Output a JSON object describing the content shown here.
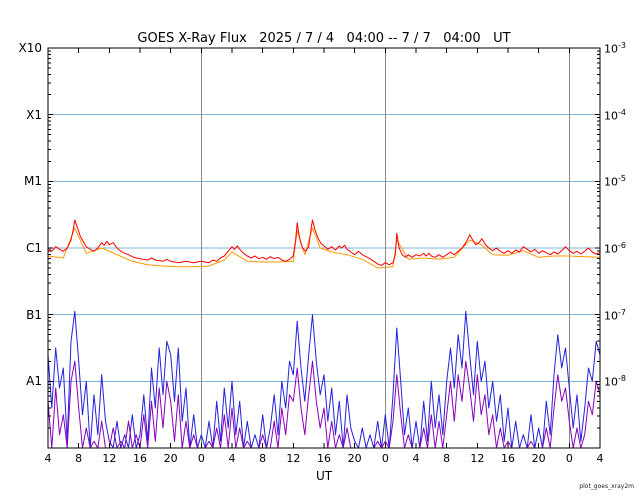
{
  "title": "GOES X-Ray Flux   2025 / 7 / 4   04:00 -- 7 / 7   04:00   UT",
  "watermark": "plot_goes_xray2m",
  "colors": {
    "grid_blue": "#7fb2d9",
    "day_line_gray": "#8a8a8a",
    "frame_black": "#000000",
    "red_trace": "#ff0000",
    "orange_trace": "#ff9900",
    "blue_trace": "#2222dd",
    "purple_trace": "#8800bb"
  },
  "axes": {
    "x": {
      "label": "UT",
      "start_hour": 4,
      "end_hour": 76,
      "tick_step_hours": 4,
      "tick_labels": [
        "4",
        "8",
        "12",
        "16",
        "20",
        "0",
        "4",
        "8",
        "12",
        "16",
        "20",
        "0",
        "4",
        "8",
        "12",
        "16",
        "20",
        "0",
        "4"
      ],
      "day_boundaries_hours": [
        24,
        48,
        72
      ]
    },
    "y_left": {
      "labels": [
        "X10",
        "X1",
        "M1",
        "C1",
        "B1",
        "A1"
      ],
      "label_exponents": [
        -3,
        -4,
        -5,
        -6,
        -7,
        -8
      ]
    },
    "y_right": {
      "base": "10",
      "exponents": [
        "-3",
        "-4",
        "-5",
        "-6",
        "-7",
        "-8"
      ]
    },
    "ylim_exponents": [
      -9,
      -3
    ],
    "grid_decades": [
      -4,
      -5,
      -6,
      -7,
      -8
    ]
  },
  "chart_data": {
    "type": "line",
    "title": "GOES X-Ray Flux   2025 / 7 / 4   04:00 -- 7 / 7   04:00   UT",
    "xlabel": "UT",
    "x_hours_range": [
      4,
      76
    ],
    "y_log10_range": [
      -9,
      -3
    ],
    "grid": "horizontal decade lines (light blue), vertical day-boundary lines (gray)",
    "legend": "none shown",
    "value_units": "log10 of X-ray flux (watts per square meter)",
    "series": [
      {
        "name": "blue",
        "color": "#2222dd",
        "sampling": "uniform",
        "start_hour": 4,
        "step_hours": 0.5,
        "log_values": [
          -7.6,
          -8.4,
          -7.5,
          -8.1,
          -7.8,
          -8.9,
          -7.4,
          -6.95,
          -7.7,
          -8.5,
          -8.0,
          -9.0,
          -8.2,
          -8.8,
          -7.9,
          -8.6,
          -8.9,
          -9.3,
          -8.6,
          -9.1,
          -8.8,
          -9.4,
          -8.5,
          -9.0,
          -8.8,
          -8.2,
          -8.9,
          -7.8,
          -8.4,
          -7.5,
          -8.2,
          -7.4,
          -7.6,
          -8.3,
          -7.5,
          -8.6,
          -8.1,
          -9.0,
          -8.5,
          -9.2,
          -8.8,
          -9.3,
          -8.6,
          -9.1,
          -8.3,
          -8.9,
          -8.1,
          -8.7,
          -8.0,
          -8.8,
          -8.3,
          -9.1,
          -8.6,
          -9.3,
          -8.8,
          -9.0,
          -8.5,
          -9.2,
          -8.7,
          -8.2,
          -8.8,
          -8.0,
          -8.4,
          -7.7,
          -7.9,
          -7.1,
          -7.8,
          -8.3,
          -7.6,
          -7.0,
          -7.7,
          -8.2,
          -7.9,
          -8.6,
          -8.1,
          -8.8,
          -8.3,
          -9.0,
          -8.2,
          -8.7,
          -8.9,
          -9.3,
          -8.7,
          -9.2,
          -8.8,
          -9.4,
          -8.6,
          -9.1,
          -8.5,
          -9.0,
          -8.2,
          -7.2,
          -8.0,
          -8.8,
          -8.4,
          -9.0,
          -8.6,
          -9.2,
          -8.3,
          -8.9,
          -8.0,
          -8.7,
          -8.2,
          -8.8,
          -8.0,
          -7.5,
          -8.1,
          -7.3,
          -7.8,
          -6.95,
          -7.6,
          -8.2,
          -7.4,
          -8.0,
          -7.7,
          -8.4,
          -8.0,
          -8.6,
          -8.2,
          -8.9,
          -8.4,
          -9.0,
          -8.6,
          -9.2,
          -8.8,
          -9.3,
          -8.5,
          -9.1,
          -8.7,
          -9.2,
          -8.3,
          -8.8,
          -7.9,
          -7.3,
          -7.8,
          -7.5,
          -8.1,
          -8.7,
          -8.2,
          -8.9,
          -8.4,
          -7.8,
          -8.0,
          -7.4,
          -7.6
        ]
      },
      {
        "name": "purple",
        "color": "#8800bb",
        "sampling": "uniform",
        "start_hour": 4,
        "step_hours": 0.5,
        "log_values": [
          -8.3,
          -9.0,
          -8.1,
          -8.8,
          -8.5,
          -9.2,
          -8.0,
          -7.7,
          -8.4,
          -9.1,
          -8.7,
          -9.4,
          -8.9,
          -9.2,
          -8.6,
          -9.0,
          -9.2,
          -8.7,
          -9.4,
          -8.9,
          -9.1,
          -8.6,
          -9.3,
          -8.8,
          -9.0,
          -8.5,
          -9.2,
          -8.3,
          -8.9,
          -8.1,
          -8.7,
          -8.0,
          -8.3,
          -8.9,
          -8.2,
          -9.0,
          -8.6,
          -9.3,
          -8.8,
          -9.4,
          -9.1,
          -9.5,
          -8.9,
          -9.3,
          -8.7,
          -9.2,
          -8.5,
          -9.0,
          -8.4,
          -9.1,
          -8.7,
          -9.3,
          -8.9,
          -9.5,
          -9.0,
          -9.3,
          -8.8,
          -9.4,
          -9.0,
          -8.6,
          -9.1,
          -8.4,
          -8.8,
          -8.2,
          -8.3,
          -7.8,
          -8.4,
          -8.8,
          -8.2,
          -7.7,
          -8.3,
          -8.7,
          -8.4,
          -9.0,
          -8.6,
          -9.2,
          -8.8,
          -9.4,
          -8.7,
          -9.1,
          -9.2,
          -9.5,
          -9.0,
          -9.4,
          -9.1,
          -9.5,
          -8.9,
          -9.3,
          -8.9,
          -9.3,
          -8.6,
          -7.9,
          -8.5,
          -9.1,
          -8.8,
          -9.3,
          -9.0,
          -9.4,
          -8.7,
          -9.2,
          -8.5,
          -9.0,
          -8.6,
          -9.1,
          -8.5,
          -8.0,
          -8.6,
          -7.9,
          -8.3,
          -7.7,
          -8.1,
          -8.6,
          -7.9,
          -8.5,
          -8.2,
          -8.8,
          -8.5,
          -9.0,
          -8.7,
          -9.2,
          -8.9,
          -9.3,
          -9.0,
          -9.4,
          -9.1,
          -9.5,
          -8.9,
          -9.3,
          -9.0,
          -9.4,
          -8.7,
          -9.1,
          -8.4,
          -7.9,
          -8.3,
          -8.1,
          -8.6,
          -9.1,
          -8.7,
          -9.2,
          -8.8,
          -8.3,
          -8.5,
          -8.0,
          -8.2
        ]
      },
      {
        "name": "orange",
        "color": "#ff9900",
        "sampling": "pairs",
        "points": [
          [
            4,
            -6.12
          ],
          [
            6,
            -6.15
          ],
          [
            7.5,
            -5.7
          ],
          [
            9,
            -6.08
          ],
          [
            11,
            -6.0
          ],
          [
            13,
            -6.1
          ],
          [
            15,
            -6.2
          ],
          [
            17,
            -6.25
          ],
          [
            19,
            -6.27
          ],
          [
            21,
            -6.28
          ],
          [
            23,
            -6.28
          ],
          [
            25,
            -6.27
          ],
          [
            27,
            -6.18
          ],
          [
            28,
            -6.06
          ],
          [
            30,
            -6.2
          ],
          [
            32,
            -6.21
          ],
          [
            34,
            -6.21
          ],
          [
            36,
            -6.2
          ],
          [
            36.5,
            -5.74
          ],
          [
            37.5,
            -6.1
          ],
          [
            38.5,
            -5.7
          ],
          [
            39.5,
            -6.0
          ],
          [
            41,
            -6.06
          ],
          [
            43,
            -6.1
          ],
          [
            45,
            -6.17
          ],
          [
            47,
            -6.3
          ],
          [
            49,
            -6.28
          ],
          [
            49.5,
            -5.88
          ],
          [
            51,
            -6.17
          ],
          [
            53,
            -6.15
          ],
          [
            55,
            -6.17
          ],
          [
            57,
            -6.14
          ],
          [
            59,
            -5.88
          ],
          [
            60.5,
            -5.95
          ],
          [
            62,
            -6.1
          ],
          [
            64,
            -6.11
          ],
          [
            66,
            -6.04
          ],
          [
            68,
            -6.14
          ],
          [
            70,
            -6.12
          ],
          [
            72,
            -6.12
          ],
          [
            74,
            -6.13
          ],
          [
            76,
            -6.14
          ]
        ]
      },
      {
        "name": "red",
        "color": "#ff0000",
        "sampling": "pairs",
        "points": [
          [
            4,
            -6.0
          ],
          [
            4.5,
            -6.05
          ],
          [
            5,
            -5.98
          ],
          [
            5.5,
            -6.02
          ],
          [
            6,
            -6.05
          ],
          [
            6.5,
            -6.0
          ],
          [
            7,
            -5.88
          ],
          [
            7.3,
            -5.72
          ],
          [
            7.5,
            -5.58
          ],
          [
            7.8,
            -5.68
          ],
          [
            8.2,
            -5.82
          ],
          [
            8.7,
            -5.92
          ],
          [
            9,
            -5.98
          ],
          [
            9.5,
            -6.02
          ],
          [
            10,
            -6.05
          ],
          [
            10.5,
            -6.0
          ],
          [
            11,
            -5.92
          ],
          [
            11.3,
            -5.96
          ],
          [
            11.7,
            -5.9
          ],
          [
            12,
            -5.95
          ],
          [
            12.5,
            -5.92
          ],
          [
            13,
            -6.0
          ],
          [
            13.5,
            -6.05
          ],
          [
            14,
            -6.08
          ],
          [
            14.5,
            -6.1
          ],
          [
            15,
            -6.13
          ],
          [
            15.5,
            -6.15
          ],
          [
            16,
            -6.16
          ],
          [
            17,
            -6.18
          ],
          [
            17.5,
            -6.15
          ],
          [
            18,
            -6.18
          ],
          [
            19,
            -6.2
          ],
          [
            19.5,
            -6.17
          ],
          [
            20,
            -6.2
          ],
          [
            21,
            -6.22
          ],
          [
            22,
            -6.2
          ],
          [
            23,
            -6.22
          ],
          [
            24,
            -6.2
          ],
          [
            25,
            -6.22
          ],
          [
            25.5,
            -6.18
          ],
          [
            26,
            -6.2
          ],
          [
            26.5,
            -6.15
          ],
          [
            27,
            -6.12
          ],
          [
            27.5,
            -6.05
          ],
          [
            28,
            -5.98
          ],
          [
            28.3,
            -6.02
          ],
          [
            28.7,
            -5.97
          ],
          [
            29,
            -6.02
          ],
          [
            29.5,
            -6.08
          ],
          [
            30,
            -6.12
          ],
          [
            30.5,
            -6.15
          ],
          [
            31,
            -6.12
          ],
          [
            31.5,
            -6.16
          ],
          [
            32,
            -6.14
          ],
          [
            32.5,
            -6.17
          ],
          [
            33,
            -6.13
          ],
          [
            33.5,
            -6.16
          ],
          [
            34,
            -6.14
          ],
          [
            34.5,
            -6.18
          ],
          [
            35,
            -6.2
          ],
          [
            35.5,
            -6.17
          ],
          [
            36,
            -6.12
          ],
          [
            36.3,
            -5.88
          ],
          [
            36.5,
            -5.62
          ],
          [
            36.8,
            -5.85
          ],
          [
            37.2,
            -6.0
          ],
          [
            37.6,
            -6.05
          ],
          [
            38,
            -5.98
          ],
          [
            38.3,
            -5.72
          ],
          [
            38.5,
            -5.58
          ],
          [
            38.8,
            -5.72
          ],
          [
            39.2,
            -5.85
          ],
          [
            39.6,
            -5.93
          ],
          [
            40,
            -5.97
          ],
          [
            40.5,
            -6.02
          ],
          [
            41,
            -5.98
          ],
          [
            41.5,
            -6.03
          ],
          [
            42,
            -5.97
          ],
          [
            42.3,
            -6.0
          ],
          [
            42.7,
            -5.96
          ],
          [
            43,
            -6.02
          ],
          [
            43.5,
            -6.06
          ],
          [
            44,
            -6.1
          ],
          [
            44.5,
            -6.05
          ],
          [
            45,
            -6.1
          ],
          [
            45.5,
            -6.13
          ],
          [
            46,
            -6.16
          ],
          [
            46.5,
            -6.2
          ],
          [
            47,
            -6.24
          ],
          [
            47.5,
            -6.26
          ],
          [
            48,
            -6.22
          ],
          [
            48.5,
            -6.25
          ],
          [
            49,
            -6.22
          ],
          [
            49.3,
            -6.1
          ],
          [
            49.5,
            -5.78
          ],
          [
            49.8,
            -6.0
          ],
          [
            50.2,
            -6.1
          ],
          [
            50.6,
            -6.14
          ],
          [
            51,
            -6.1
          ],
          [
            51.5,
            -6.14
          ],
          [
            52,
            -6.1
          ],
          [
            52.5,
            -6.12
          ],
          [
            53,
            -6.08
          ],
          [
            53.3,
            -6.12
          ],
          [
            53.7,
            -6.08
          ],
          [
            54,
            -6.12
          ],
          [
            54.5,
            -6.14
          ],
          [
            55,
            -6.1
          ],
          [
            55.5,
            -6.14
          ],
          [
            56,
            -6.1
          ],
          [
            56.5,
            -6.06
          ],
          [
            57,
            -6.1
          ],
          [
            57.5,
            -6.05
          ],
          [
            58,
            -6.0
          ],
          [
            58.5,
            -5.92
          ],
          [
            59,
            -5.8
          ],
          [
            59.4,
            -5.88
          ],
          [
            59.8,
            -5.95
          ],
          [
            60.2,
            -5.92
          ],
          [
            60.6,
            -5.86
          ],
          [
            61,
            -5.94
          ],
          [
            61.5,
            -6.0
          ],
          [
            62,
            -6.04
          ],
          [
            62.5,
            -6.0
          ],
          [
            63,
            -6.05
          ],
          [
            63.5,
            -6.08
          ],
          [
            64,
            -6.04
          ],
          [
            64.5,
            -6.08
          ],
          [
            65,
            -6.03
          ],
          [
            65.5,
            -6.06
          ],
          [
            66,
            -5.98
          ],
          [
            66.5,
            -6.02
          ],
          [
            67,
            -6.06
          ],
          [
            67.5,
            -6.02
          ],
          [
            68,
            -6.08
          ],
          [
            68.5,
            -6.04
          ],
          [
            69,
            -6.07
          ],
          [
            69.5,
            -6.1
          ],
          [
            70,
            -6.06
          ],
          [
            70.5,
            -6.09
          ],
          [
            71,
            -6.04
          ],
          [
            71.5,
            -5.98
          ],
          [
            72,
            -6.04
          ],
          [
            72.5,
            -6.08
          ],
          [
            73,
            -6.05
          ],
          [
            73.5,
            -6.09
          ],
          [
            74,
            -6.05
          ],
          [
            74.5,
            -6.0
          ],
          [
            75,
            -6.06
          ],
          [
            75.5,
            -6.09
          ],
          [
            76,
            -6.07
          ]
        ]
      }
    ]
  }
}
